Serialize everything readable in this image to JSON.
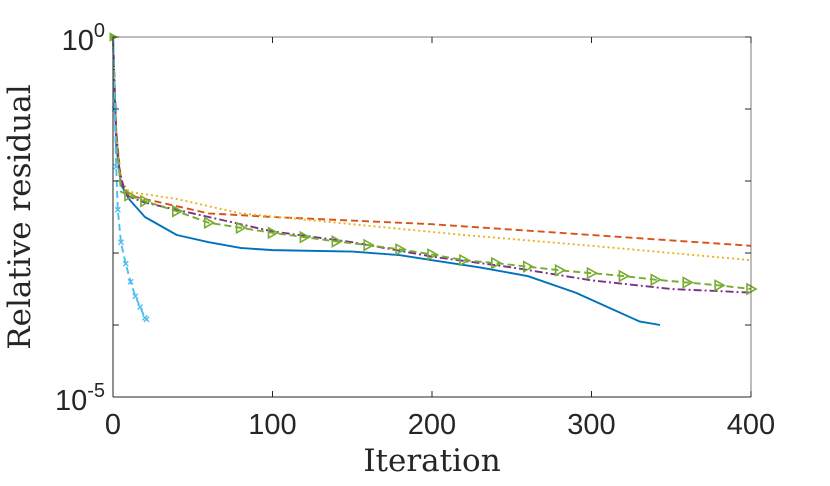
{
  "chart_data": {
    "type": "line",
    "title": "",
    "xlabel": "Iteration",
    "ylabel": "Relative residual",
    "xlim": [
      0,
      400
    ],
    "ylim_log10": [
      -5,
      0
    ],
    "yscale": "log",
    "xticks": [
      0,
      100,
      200,
      300,
      400
    ],
    "xtick_labels": [
      "0",
      "100",
      "200",
      "300",
      "400"
    ],
    "yticks_log10": [
      -5,
      0
    ],
    "ytick_labels": [
      {
        "base": "10",
        "exp": "-5"
      },
      {
        "base": "10",
        "exp": "0"
      }
    ],
    "grid": false,
    "series": [
      {
        "name": "solid blue",
        "color": "#0072BD",
        "style": "solid",
        "marker": "none",
        "points": [
          [
            0,
            0
          ],
          [
            2,
            -1.5
          ],
          [
            5,
            -2.05
          ],
          [
            10,
            -2.25
          ],
          [
            20,
            -2.5
          ],
          [
            40,
            -2.75
          ],
          [
            60,
            -2.85
          ],
          [
            80,
            -2.93
          ],
          [
            100,
            -2.96
          ],
          [
            150,
            -2.98
          ],
          [
            180,
            -3.03
          ],
          [
            200,
            -3.1
          ],
          [
            230,
            -3.2
          ],
          [
            260,
            -3.32
          ],
          [
            290,
            -3.55
          ],
          [
            310,
            -3.75
          ],
          [
            330,
            -3.95
          ],
          [
            343,
            -4.0
          ]
        ]
      },
      {
        "name": "dashed orange",
        "color": "#D95319",
        "style": "dashed",
        "marker": "none",
        "points": [
          [
            0,
            0
          ],
          [
            2,
            -1.3
          ],
          [
            5,
            -2.0
          ],
          [
            10,
            -2.2
          ],
          [
            30,
            -2.3
          ],
          [
            60,
            -2.45
          ],
          [
            100,
            -2.5
          ],
          [
            200,
            -2.6
          ],
          [
            300,
            -2.75
          ],
          [
            400,
            -2.9
          ]
        ]
      },
      {
        "name": "dotted yellow",
        "color": "#EDB120",
        "style": "dotted",
        "marker": "none",
        "points": [
          [
            0,
            0
          ],
          [
            2,
            -1.35
          ],
          [
            5,
            -2.0
          ],
          [
            10,
            -2.15
          ],
          [
            40,
            -2.25
          ],
          [
            80,
            -2.45
          ],
          [
            150,
            -2.6
          ],
          [
            220,
            -2.75
          ],
          [
            300,
            -2.9
          ],
          [
            350,
            -3.0
          ],
          [
            400,
            -3.1
          ]
        ]
      },
      {
        "name": "dash-dot purple",
        "color": "#7E2F8E",
        "style": "dashdot",
        "marker": "none",
        "points": [
          [
            0,
            0
          ],
          [
            2,
            -1.3
          ],
          [
            4,
            -1.85
          ],
          [
            8,
            -2.2
          ],
          [
            20,
            -2.3
          ],
          [
            60,
            -2.5
          ],
          [
            100,
            -2.7
          ],
          [
            150,
            -2.85
          ],
          [
            200,
            -3.05
          ],
          [
            250,
            -3.2
          ],
          [
            300,
            -3.38
          ],
          [
            350,
            -3.5
          ],
          [
            400,
            -3.55
          ]
        ]
      },
      {
        "name": "dashed green triangles",
        "color": "#77AC30",
        "style": "dashed",
        "marker": "triangle-right",
        "points": [
          [
            0,
            0
          ],
          [
            2,
            -1.4
          ],
          [
            5,
            -2.15
          ],
          [
            10,
            -2.2
          ],
          [
            20,
            -2.28
          ],
          [
            40,
            -2.42
          ],
          [
            60,
            -2.58
          ],
          [
            80,
            -2.65
          ],
          [
            100,
            -2.72
          ],
          [
            120,
            -2.78
          ],
          [
            140,
            -2.84
          ],
          [
            160,
            -2.89
          ],
          [
            180,
            -2.95
          ],
          [
            200,
            -3.02
          ],
          [
            220,
            -3.1
          ],
          [
            240,
            -3.14
          ],
          [
            260,
            -3.19
          ],
          [
            280,
            -3.24
          ],
          [
            300,
            -3.28
          ],
          [
            320,
            -3.32
          ],
          [
            340,
            -3.37
          ],
          [
            360,
            -3.41
          ],
          [
            380,
            -3.45
          ],
          [
            400,
            -3.5
          ]
        ]
      },
      {
        "name": "dashed cyan crosses",
        "color": "#4DBEEE",
        "style": "dashed",
        "marker": "x",
        "points": [
          [
            0,
            0
          ],
          [
            1,
            -1.0
          ],
          [
            2,
            -1.8
          ],
          [
            3,
            -2.4
          ],
          [
            5,
            -2.85
          ],
          [
            8,
            -3.15
          ],
          [
            11,
            -3.4
          ],
          [
            14,
            -3.6
          ],
          [
            17,
            -3.75
          ],
          [
            20,
            -3.9
          ],
          [
            21,
            -3.92
          ]
        ]
      }
    ]
  }
}
